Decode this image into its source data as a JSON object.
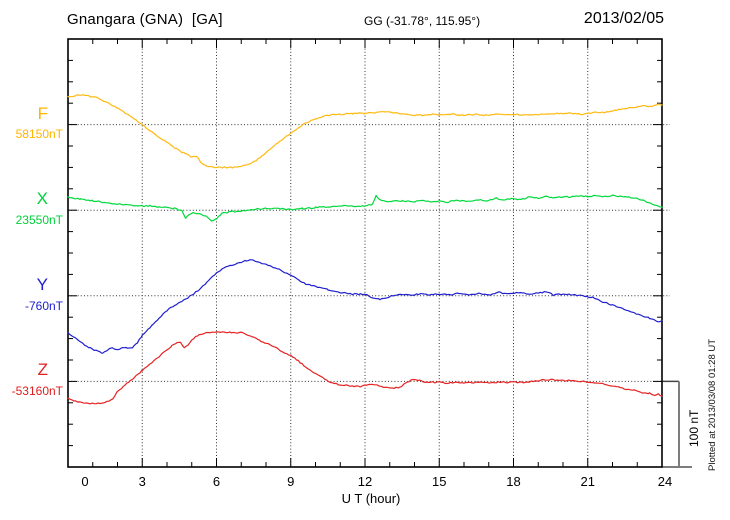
{
  "header": {
    "station": "Gnangara (GNA)  [GA]",
    "geo_coords": "GG (-31.78°, 115.95°)",
    "date": "2013/02/05"
  },
  "plot_note": "Plotted at 2013/03/08 01:28 UT",
  "scale_bar": {
    "label": "100 nT",
    "span_nT": 100
  },
  "xaxis": {
    "label": "U T (hour)",
    "tick_labels": [
      "0",
      "3",
      "6",
      "9",
      "12",
      "15",
      "18",
      "21",
      "24"
    ],
    "minor_step_hours": 1,
    "range_hours": [
      0,
      24
    ]
  },
  "colors": {
    "F": "#ffb90f",
    "X": "#00d93c",
    "Y": "#2020cf",
    "Z": "#e62222",
    "axis": "#000000",
    "grid_dots": "#333333",
    "scale_gray": "#7d7d7d"
  },
  "chart_data": {
    "type": "line",
    "title": "Gnangara (GNA)  [GA]",
    "subtitle": "GG (-31.78°, 115.95°)",
    "date": "2013/02/05",
    "xlabel": "U T (hour)",
    "x_range": [
      0,
      24
    ],
    "x_ticks": [
      0,
      3,
      6,
      9,
      12,
      15,
      18,
      21,
      24
    ],
    "grid": "dotted vertical every 3 h; dotted horizontal at each component baseline",
    "legend_position": "left margin, one label per stacked trace",
    "y_scale_note": "vertical bar at right = 100 nT",
    "series": [
      {
        "name": "F",
        "baseline_label": "58150nT",
        "baseline_nT": 58150,
        "color": "#ffb90f",
        "points_hour_offset_nT": [
          [
            0,
            32
          ],
          [
            0.3,
            34
          ],
          [
            0.6,
            35
          ],
          [
            0.9,
            33
          ],
          [
            1.2,
            31
          ],
          [
            1.5,
            27
          ],
          [
            2,
            19
          ],
          [
            2.5,
            10
          ],
          [
            3,
            0
          ],
          [
            3.5,
            -11
          ],
          [
            4,
            -21
          ],
          [
            4.3,
            -27
          ],
          [
            4.6,
            -32
          ],
          [
            4.8,
            -34
          ],
          [
            5,
            -38
          ],
          [
            5.2,
            -37
          ],
          [
            5.4,
            -45
          ],
          [
            5.7,
            -49
          ],
          [
            6,
            -50
          ],
          [
            6.4,
            -50
          ],
          [
            6.8,
            -50
          ],
          [
            7,
            -49
          ],
          [
            7.3,
            -46
          ],
          [
            7.6,
            -42
          ],
          [
            8,
            -33
          ],
          [
            8.5,
            -21
          ],
          [
            9,
            -10
          ],
          [
            9.5,
            0
          ],
          [
            10,
            7
          ],
          [
            10.5,
            11
          ],
          [
            11,
            12
          ],
          [
            11.5,
            13
          ],
          [
            12,
            13
          ],
          [
            12.4,
            14
          ],
          [
            12.8,
            15
          ],
          [
            13.2,
            14
          ],
          [
            13.6,
            12
          ],
          [
            14,
            11
          ],
          [
            14.4,
            11
          ],
          [
            14.8,
            12
          ],
          [
            15.2,
            11
          ],
          [
            15.6,
            12
          ],
          [
            16,
            11
          ],
          [
            16.4,
            12
          ],
          [
            16.8,
            11
          ],
          [
            17.2,
            12
          ],
          [
            17.6,
            12
          ],
          [
            18,
            12
          ],
          [
            18.4,
            11
          ],
          [
            18.8,
            12
          ],
          [
            19.2,
            12
          ],
          [
            19.6,
            13
          ],
          [
            20,
            13
          ],
          [
            20.4,
            13
          ],
          [
            20.8,
            12
          ],
          [
            21.2,
            14
          ],
          [
            21.6,
            14
          ],
          [
            22,
            16
          ],
          [
            22.5,
            19
          ],
          [
            23,
            21
          ],
          [
            23.3,
            22
          ],
          [
            23.6,
            21
          ],
          [
            23.8,
            24
          ],
          [
            24,
            23
          ]
        ]
      },
      {
        "name": "X",
        "baseline_label": "23550nT",
        "baseline_nT": 23550,
        "color": "#00d93c",
        "points_hour_offset_nT": [
          [
            0,
            15
          ],
          [
            0.5,
            13
          ],
          [
            1,
            11
          ],
          [
            1.5,
            9
          ],
          [
            2,
            7
          ],
          [
            2.5,
            6
          ],
          [
            3,
            5
          ],
          [
            3.3,
            5
          ],
          [
            3.6,
            4
          ],
          [
            4,
            3
          ],
          [
            4.3,
            2
          ],
          [
            4.6,
            0
          ],
          [
            4.75,
            -10
          ],
          [
            4.9,
            -5
          ],
          [
            5.1,
            -3
          ],
          [
            5.4,
            -5
          ],
          [
            5.6,
            -7
          ],
          [
            5.8,
            -12
          ],
          [
            6,
            -10
          ],
          [
            6.2,
            -4
          ],
          [
            6.5,
            -2
          ],
          [
            7,
            -1
          ],
          [
            7.5,
            1
          ],
          [
            8,
            2
          ],
          [
            8.5,
            2
          ],
          [
            9,
            1
          ],
          [
            9.5,
            2
          ],
          [
            10,
            3
          ],
          [
            10.5,
            4
          ],
          [
            11,
            5
          ],
          [
            11.5,
            5
          ],
          [
            12,
            5
          ],
          [
            12.3,
            7
          ],
          [
            12.45,
            17
          ],
          [
            12.6,
            12
          ],
          [
            13,
            10
          ],
          [
            13.5,
            11
          ],
          [
            14,
            10
          ],
          [
            14.3,
            11
          ],
          [
            14.6,
            10
          ],
          [
            15,
            11
          ],
          [
            15.3,
            9
          ],
          [
            15.6,
            11
          ],
          [
            16,
            11
          ],
          [
            16.3,
            10
          ],
          [
            16.6,
            12
          ],
          [
            17,
            11
          ],
          [
            17.3,
            14
          ],
          [
            17.6,
            12
          ],
          [
            18,
            14
          ],
          [
            18.3,
            12
          ],
          [
            18.6,
            15
          ],
          [
            19,
            14
          ],
          [
            19.3,
            16
          ],
          [
            19.6,
            14
          ],
          [
            20,
            16
          ],
          [
            20.3,
            15
          ],
          [
            20.6,
            17
          ],
          [
            21,
            16
          ],
          [
            21.3,
            17
          ],
          [
            21.6,
            16
          ],
          [
            22,
            17
          ],
          [
            22.5,
            16
          ],
          [
            23,
            14
          ],
          [
            23.3,
            11
          ],
          [
            23.6,
            7
          ],
          [
            24,
            4
          ]
        ]
      },
      {
        "name": "Y",
        "baseline_label": "-760nT",
        "baseline_nT": -760,
        "color": "#2020cf",
        "points_hour_offset_nT": [
          [
            0,
            -44
          ],
          [
            0.3,
            -49
          ],
          [
            0.6,
            -56
          ],
          [
            0.9,
            -61
          ],
          [
            1.2,
            -65
          ],
          [
            1.4,
            -67
          ],
          [
            1.6,
            -63
          ],
          [
            1.8,
            -61
          ],
          [
            2,
            -63
          ],
          [
            2.2,
            -60
          ],
          [
            2.4,
            -61
          ],
          [
            2.6,
            -61
          ],
          [
            2.8,
            -55
          ],
          [
            3,
            -46
          ],
          [
            3.3,
            -37
          ],
          [
            3.6,
            -29
          ],
          [
            4,
            -17
          ],
          [
            4.3,
            -11
          ],
          [
            4.6,
            -7
          ],
          [
            5,
            1
          ],
          [
            5.3,
            7
          ],
          [
            5.6,
            15
          ],
          [
            6,
            27
          ],
          [
            6.3,
            33
          ],
          [
            6.6,
            36
          ],
          [
            7,
            39
          ],
          [
            7.2,
            41
          ],
          [
            7.4,
            42
          ],
          [
            7.6,
            40
          ],
          [
            8,
            37
          ],
          [
            8.3,
            33
          ],
          [
            8.6,
            30
          ],
          [
            9,
            24
          ],
          [
            9.3,
            19
          ],
          [
            9.6,
            14
          ],
          [
            10,
            11
          ],
          [
            10.5,
            7
          ],
          [
            11,
            4
          ],
          [
            11.5,
            2
          ],
          [
            12,
            2
          ],
          [
            12.3,
            -2
          ],
          [
            12.6,
            -4
          ],
          [
            12.9,
            -2
          ],
          [
            13.2,
            1
          ],
          [
            13.5,
            2
          ],
          [
            14,
            1
          ],
          [
            14.3,
            3
          ],
          [
            14.6,
            1
          ],
          [
            15,
            2
          ],
          [
            15.4,
            1
          ],
          [
            15.8,
            3
          ],
          [
            16.2,
            1
          ],
          [
            16.6,
            3
          ],
          [
            17,
            1
          ],
          [
            17.4,
            4
          ],
          [
            17.8,
            2
          ],
          [
            18.2,
            4
          ],
          [
            18.6,
            2
          ],
          [
            19,
            3
          ],
          [
            19.3,
            5
          ],
          [
            19.6,
            1
          ],
          [
            20,
            2
          ],
          [
            20.4,
            1
          ],
          [
            20.8,
            0
          ],
          [
            21.2,
            -2
          ],
          [
            21.6,
            -7
          ],
          [
            22,
            -11
          ],
          [
            22.4,
            -15
          ],
          [
            22.8,
            -19
          ],
          [
            23.2,
            -24
          ],
          [
            23.5,
            -26
          ],
          [
            23.8,
            -30
          ],
          [
            24,
            -29
          ]
        ]
      },
      {
        "name": "Z",
        "baseline_label": "-53160nT",
        "baseline_nT": -53160,
        "color": "#e62222",
        "points_hour_offset_nT": [
          [
            0,
            -20
          ],
          [
            0.3,
            -23
          ],
          [
            0.6,
            -25
          ],
          [
            0.9,
            -26
          ],
          [
            1.2,
            -26
          ],
          [
            1.5,
            -24
          ],
          [
            1.8,
            -21
          ],
          [
            2,
            -12
          ],
          [
            2.3,
            -4
          ],
          [
            2.5,
            0
          ],
          [
            3,
            13
          ],
          [
            3.3,
            20
          ],
          [
            3.6,
            27
          ],
          [
            4,
            37
          ],
          [
            4.2,
            42
          ],
          [
            4.4,
            45
          ],
          [
            4.55,
            45
          ],
          [
            4.7,
            40
          ],
          [
            4.85,
            42
          ],
          [
            5,
            49
          ],
          [
            5.3,
            55
          ],
          [
            5.6,
            57
          ],
          [
            6,
            58
          ],
          [
            6.3,
            58
          ],
          [
            6.6,
            57
          ],
          [
            7,
            57
          ],
          [
            7.2,
            55
          ],
          [
            7.5,
            51
          ],
          [
            7.8,
            47
          ],
          [
            8,
            45
          ],
          [
            8.3,
            41
          ],
          [
            8.6,
            36
          ],
          [
            9,
            30
          ],
          [
            9.3,
            24
          ],
          [
            9.6,
            17
          ],
          [
            10,
            9
          ],
          [
            10.3,
            4
          ],
          [
            10.6,
            -1
          ],
          [
            11,
            -4
          ],
          [
            11.4,
            -5
          ],
          [
            11.8,
            -6
          ],
          [
            12,
            -4
          ],
          [
            12.2,
            -3
          ],
          [
            12.5,
            -5
          ],
          [
            12.8,
            -7
          ],
          [
            13.1,
            -8
          ],
          [
            13.4,
            -7
          ],
          [
            13.7,
            -1
          ],
          [
            13.9,
            2
          ],
          [
            14.2,
            1
          ],
          [
            14.5,
            -1
          ],
          [
            15,
            -1
          ],
          [
            15.3,
            -2
          ],
          [
            15.6,
            -1
          ],
          [
            16,
            -2
          ],
          [
            16.5,
            -1
          ],
          [
            17,
            -2
          ],
          [
            17.3,
            -1
          ],
          [
            17.6,
            -1
          ],
          [
            18,
            -1
          ],
          [
            18.4,
            -1
          ],
          [
            18.8,
            0
          ],
          [
            19.2,
            2
          ],
          [
            19.6,
            2
          ],
          [
            20,
            1
          ],
          [
            20.4,
            1
          ],
          [
            20.8,
            0
          ],
          [
            21.2,
            -1
          ],
          [
            21.6,
            -3
          ],
          [
            22,
            -5
          ],
          [
            22.4,
            -8
          ],
          [
            22.8,
            -10
          ],
          [
            23.2,
            -13
          ],
          [
            23.5,
            -14
          ],
          [
            23.7,
            -16
          ],
          [
            23.85,
            -15
          ],
          [
            24,
            -17
          ]
        ]
      }
    ]
  }
}
